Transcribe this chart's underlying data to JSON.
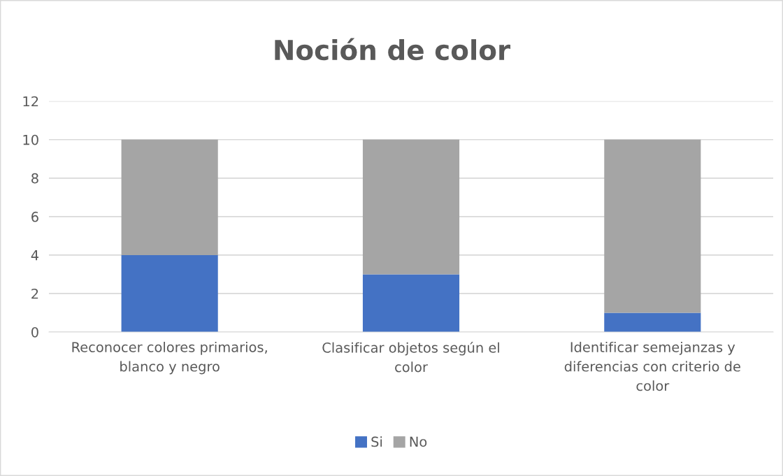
{
  "chart_data": {
    "type": "bar",
    "title": "Noción de color",
    "stacked": true,
    "categories": [
      "Reconocer colores primarios, blanco y negro",
      "Clasificar objetos según el color",
      "Identificar semejanzas y diferencias con criterio de color"
    ],
    "series": [
      {
        "name": "Si",
        "color": "#4472c4",
        "values": [
          4,
          3,
          1
        ]
      },
      {
        "name": "No",
        "color": "#a5a5a5",
        "values": [
          6,
          7,
          9
        ]
      }
    ],
    "ylim": [
      0,
      12
    ],
    "yticks": [
      0,
      2,
      4,
      6,
      8,
      10,
      12
    ],
    "grid": "y",
    "legend": "bottom"
  }
}
